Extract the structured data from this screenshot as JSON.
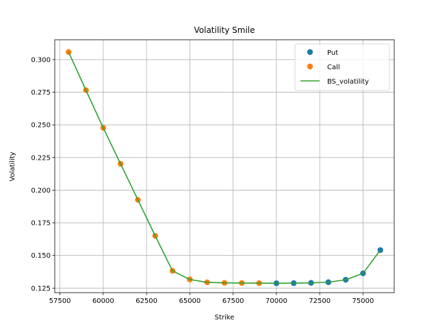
{
  "chart_data": {
    "type": "scatter",
    "title": "Volatility Smile",
    "xlabel": "Strike",
    "ylabel": "Volatility",
    "xlim": [
      57200,
      76800
    ],
    "ylim": [
      0.1215,
      0.3152
    ],
    "grid": true,
    "legend_position": "top-right",
    "xticks": [
      57500,
      60000,
      62500,
      65000,
      67500,
      70000,
      72500,
      75000
    ],
    "xtick_labels": [
      "57500",
      "60000",
      "62500",
      "65000",
      "67500",
      "70000",
      "72500",
      "75000"
    ],
    "yticks": [
      0.125,
      0.15,
      0.175,
      0.2,
      0.225,
      0.25,
      0.275,
      0.3
    ],
    "ytick_labels": [
      "0.125",
      "0.150",
      "0.175",
      "0.200",
      "0.225",
      "0.250",
      "0.275",
      "0.300"
    ],
    "series": [
      {
        "name": "Put",
        "kind": "scatter",
        "color": "#1f77b4",
        "x": [
          70000,
          71000,
          72000,
          73000,
          74000,
          75000,
          76000
        ],
        "y": [
          0.1287,
          0.1288,
          0.129,
          0.1295,
          0.1314,
          0.1363,
          0.1541
        ]
      },
      {
        "name": "Call",
        "kind": "scatter",
        "color": "#ff7f0e",
        "x": [
          58000,
          59000,
          60000,
          61000,
          62000,
          63000,
          64000,
          65000,
          66000,
          67000,
          68000,
          69000
        ],
        "y": [
          0.3058,
          0.2766,
          0.2477,
          0.2202,
          0.1926,
          0.165,
          0.1382,
          0.1316,
          0.1294,
          0.129,
          0.1289,
          0.1288
        ]
      },
      {
        "name": "BS_volatility",
        "kind": "line",
        "color": "#2ca02c",
        "x": [
          58000,
          59000,
          60000,
          61000,
          62000,
          63000,
          64000,
          65000,
          66000,
          67000,
          68000,
          69000,
          70000,
          71000,
          72000,
          73000,
          74000,
          75000,
          76000
        ],
        "y": [
          0.3058,
          0.2766,
          0.2477,
          0.2202,
          0.1926,
          0.165,
          0.1382,
          0.1316,
          0.1294,
          0.129,
          0.1289,
          0.1288,
          0.1287,
          0.1288,
          0.129,
          0.1295,
          0.1314,
          0.1363,
          0.1541
        ]
      }
    ]
  }
}
